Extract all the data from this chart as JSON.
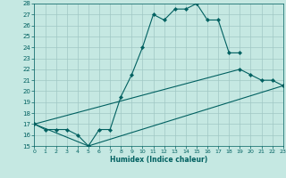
{
  "xlabel": "Humidex (Indice chaleur)",
  "xlim": [
    0,
    23
  ],
  "ylim": [
    15,
    28
  ],
  "xticks": [
    0,
    1,
    2,
    3,
    4,
    5,
    6,
    7,
    8,
    9,
    10,
    11,
    12,
    13,
    14,
    15,
    16,
    17,
    18,
    19,
    20,
    21,
    22,
    23
  ],
  "yticks": [
    15,
    16,
    17,
    18,
    19,
    20,
    21,
    22,
    23,
    24,
    25,
    26,
    27,
    28
  ],
  "bg_color": "#c5e8e2",
  "line_color": "#006060",
  "grid_color": "#a0c8c4",
  "curve1_x": [
    0,
    1,
    2,
    3,
    4,
    5,
    6,
    7,
    8,
    9,
    10,
    11,
    12,
    13,
    14,
    15,
    16,
    17,
    18,
    19
  ],
  "curve1_y": [
    17,
    16.5,
    16.5,
    16.5,
    16,
    15,
    16.5,
    16.5,
    19.5,
    21.5,
    24,
    27,
    26.5,
    27.5,
    27.5,
    28,
    26.5,
    26.5,
    23.5,
    23.5
  ],
  "curve2_x": [
    0,
    19,
    20,
    21,
    22,
    23
  ],
  "curve2_y": [
    17,
    22,
    21.5,
    21,
    21,
    20.5
  ],
  "curve3_x": [
    0,
    5,
    23
  ],
  "curve3_y": [
    17,
    15,
    20.5
  ]
}
